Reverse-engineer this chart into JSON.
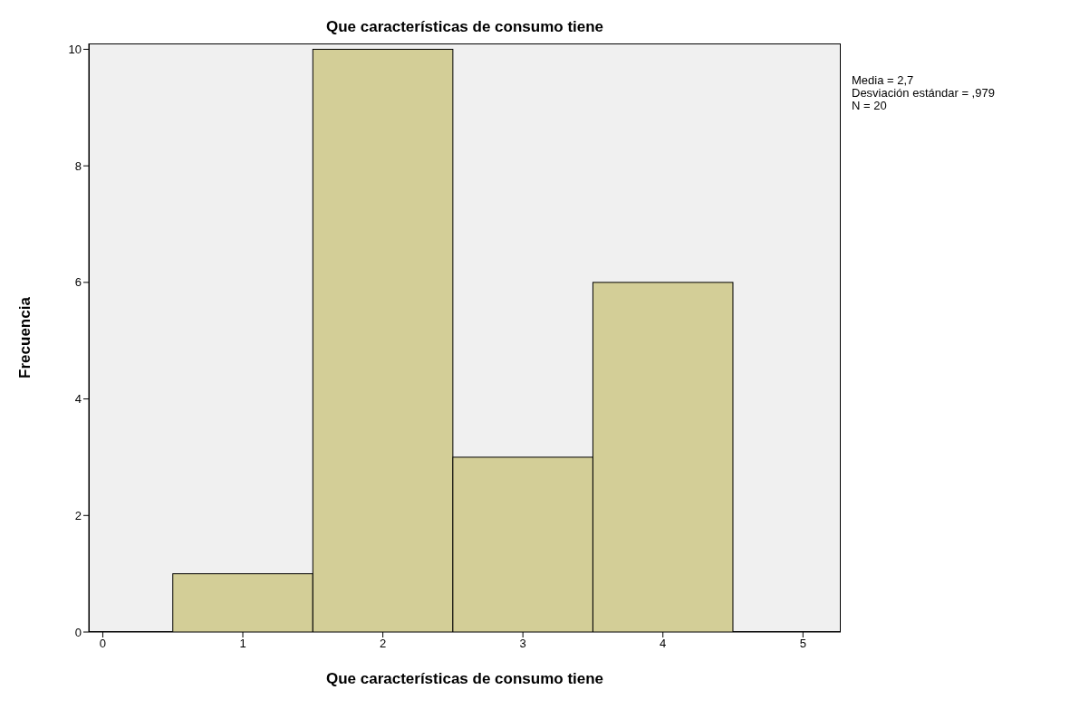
{
  "chart_data": {
    "type": "histogram",
    "title": "Que características de consumo tiene",
    "xlabel": "Que características de consumo tiene",
    "ylabel": "Frecuencia",
    "bins": [
      0.5,
      1.5,
      2.5,
      3.5,
      4.5
    ],
    "values": [
      1,
      10,
      3,
      6
    ],
    "color": "#d3ce97",
    "xlim": [
      -0.1,
      5.27
    ],
    "xticks": [
      0,
      1,
      2,
      3,
      4,
      5
    ],
    "ylim": [
      0,
      10.1
    ],
    "yticks": [
      0,
      2,
      4,
      6,
      8,
      10
    ],
    "annotations": [
      "Media = 2,7",
      "Desviación estándar = ,979",
      "N = 20"
    ]
  }
}
